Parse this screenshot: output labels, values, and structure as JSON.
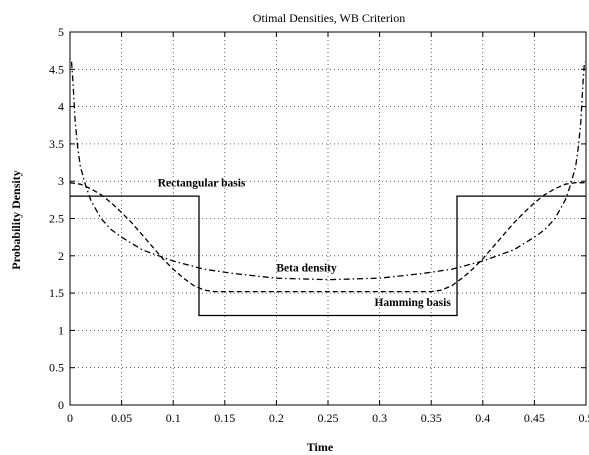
{
  "chart_data": {
    "type": "line",
    "title": "Otimal Densities, WB Criterion",
    "xlabel": "Time",
    "ylabel": "Probability Density",
    "xlim": [
      0,
      0.5
    ],
    "ylim": [
      0,
      5
    ],
    "xticks": [
      "0",
      "0.05",
      "0.1",
      "0.15",
      "0.2",
      "0.25",
      "0.3",
      "0.35",
      "0.4",
      "0.45",
      "0.5"
    ],
    "yticks": [
      "0",
      "0.5",
      "1",
      "1.5",
      "2",
      "2.5",
      "3",
      "3.5",
      "4",
      "4.5",
      "5"
    ],
    "grid": true,
    "annotations": [
      {
        "text": "Rectangular basis",
        "x": 0.085,
        "y": 2.93
      },
      {
        "text": "Beta density",
        "x": 0.2,
        "y": 1.79
      },
      {
        "text": "Hamming basis",
        "x": 0.295,
        "y": 1.33
      }
    ],
    "series": [
      {
        "name": "Rectangular basis",
        "style": "solid",
        "x": [
          0,
          0.125,
          0.125,
          0.375,
          0.375,
          0.5
        ],
        "y": [
          2.8,
          2.8,
          1.2,
          1.2,
          2.8,
          2.8
        ]
      },
      {
        "name": "Hamming basis",
        "style": "dashed",
        "x": [
          0,
          0.01,
          0.02,
          0.03,
          0.04,
          0.05,
          0.06,
          0.07,
          0.08,
          0.09,
          0.1,
          0.11,
          0.12,
          0.13,
          0.14,
          0.15,
          0.16,
          0.2,
          0.25,
          0.3,
          0.34,
          0.35,
          0.36,
          0.37,
          0.38,
          0.39,
          0.4,
          0.41,
          0.42,
          0.43,
          0.44,
          0.45,
          0.46,
          0.47,
          0.48,
          0.49,
          0.5
        ],
        "y": [
          2.98,
          2.96,
          2.9,
          2.82,
          2.71,
          2.58,
          2.44,
          2.28,
          2.12,
          1.96,
          1.82,
          1.7,
          1.6,
          1.54,
          1.52,
          1.52,
          1.52,
          1.52,
          1.52,
          1.52,
          1.52,
          1.52,
          1.54,
          1.6,
          1.7,
          1.82,
          1.96,
          2.12,
          2.28,
          2.44,
          2.58,
          2.71,
          2.82,
          2.9,
          2.96,
          2.98,
          2.98
        ]
      },
      {
        "name": "Beta density",
        "style": "dash-dot",
        "x": [
          0.0015,
          0.003,
          0.005,
          0.0075,
          0.01,
          0.015,
          0.02,
          0.03,
          0.04,
          0.05,
          0.07,
          0.1,
          0.13,
          0.16,
          0.2,
          0.25,
          0.3,
          0.34,
          0.37,
          0.4,
          0.43,
          0.45,
          0.46,
          0.47,
          0.48,
          0.485,
          0.49,
          0.4925,
          0.495,
          0.497,
          0.4985
        ],
        "y": [
          4.6,
          4.3,
          3.8,
          3.45,
          3.2,
          2.95,
          2.75,
          2.5,
          2.35,
          2.25,
          2.08,
          1.93,
          1.82,
          1.76,
          1.7,
          1.68,
          1.7,
          1.76,
          1.82,
          1.93,
          2.08,
          2.25,
          2.35,
          2.5,
          2.75,
          2.95,
          3.2,
          3.45,
          3.8,
          4.3,
          4.6
        ]
      }
    ]
  }
}
